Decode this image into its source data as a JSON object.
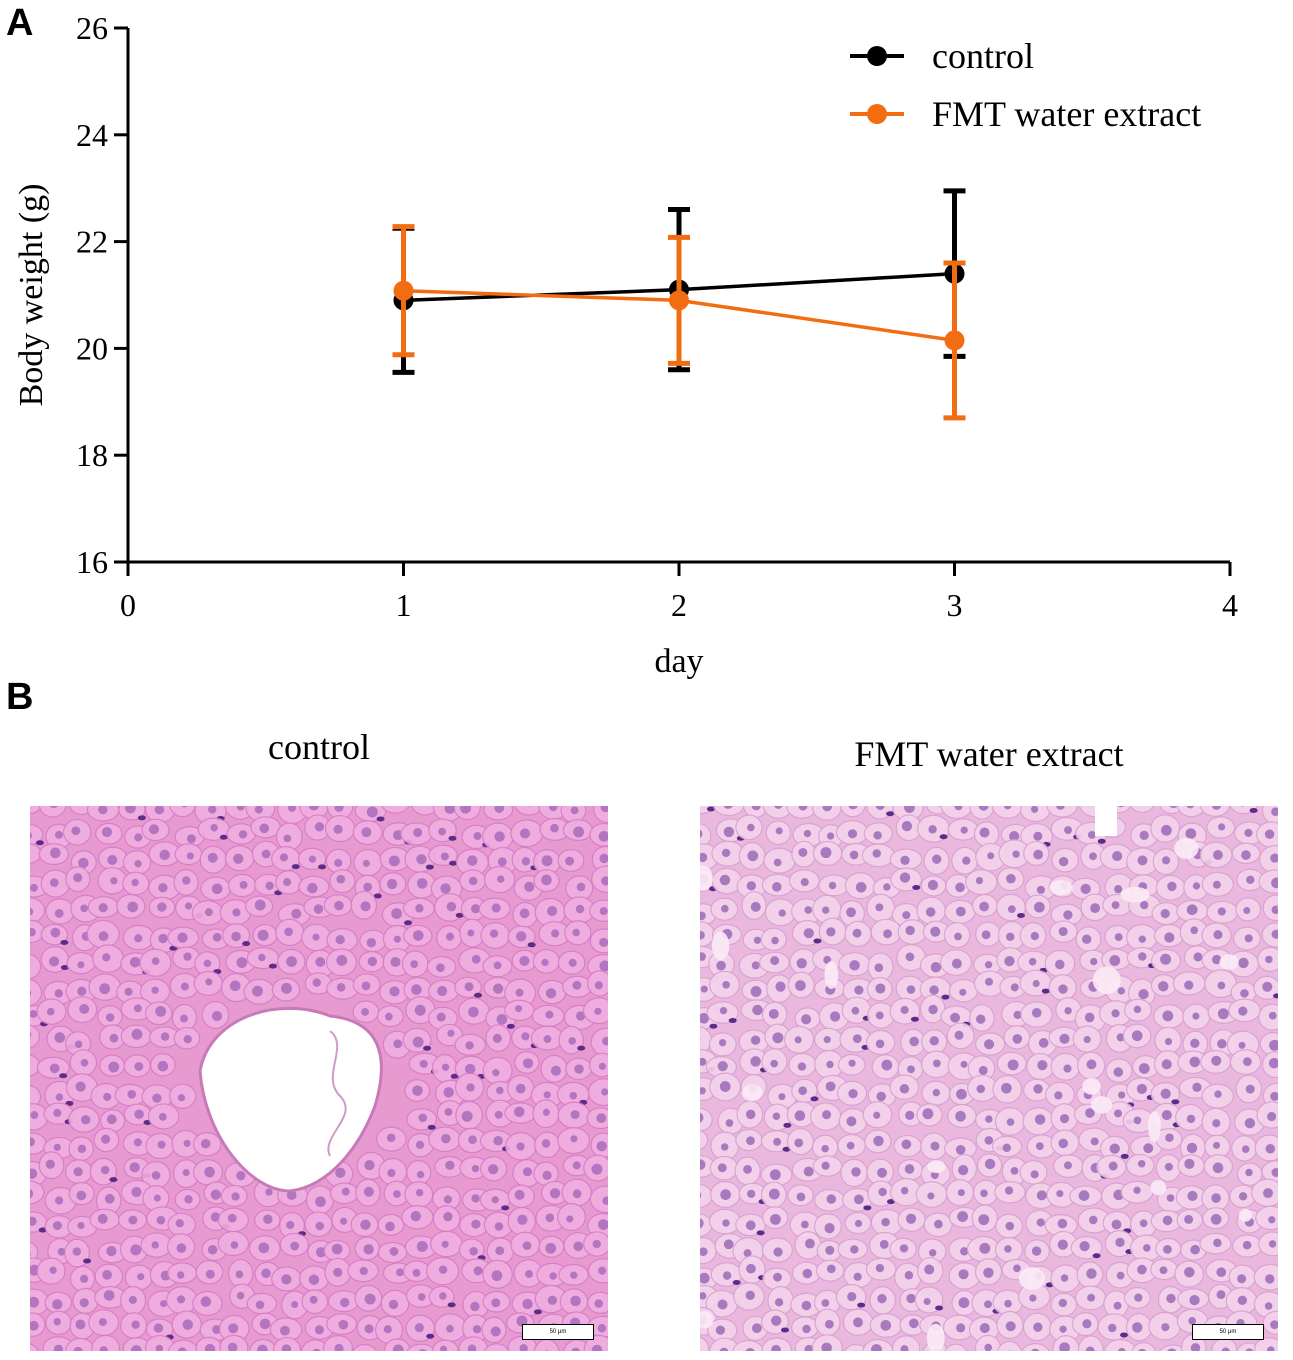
{
  "panels": {
    "a_label": "A",
    "b_label": "B"
  },
  "chart_data": {
    "type": "line",
    "xlabel": "day",
    "ylabel": "Body weight (g)",
    "xlim": [
      0,
      4
    ],
    "ylim": [
      16,
      26
    ],
    "xticks": [
      0,
      1,
      2,
      3,
      4
    ],
    "yticks": [
      16,
      18,
      20,
      22,
      24,
      26
    ],
    "grid": false,
    "legend_position": "top-right",
    "series": [
      {
        "name": "control",
        "color": "#000000",
        "x": [
          1,
          2,
          3
        ],
        "values": [
          20.9,
          21.1,
          21.4
        ],
        "error": [
          1.35,
          1.5,
          1.55
        ]
      },
      {
        "name": "FMT water extract",
        "color": "#f26c12",
        "x": [
          1,
          2,
          3
        ],
        "values": [
          21.08,
          20.9,
          20.15
        ],
        "error": [
          1.2,
          1.18,
          1.45
        ]
      }
    ]
  },
  "micrographs": [
    {
      "title": "control",
      "scale_bar": "50 μm",
      "kind": "central-vein"
    },
    {
      "title": "FMT water extract",
      "scale_bar": "50 μm",
      "kind": "vacuolated"
    }
  ]
}
